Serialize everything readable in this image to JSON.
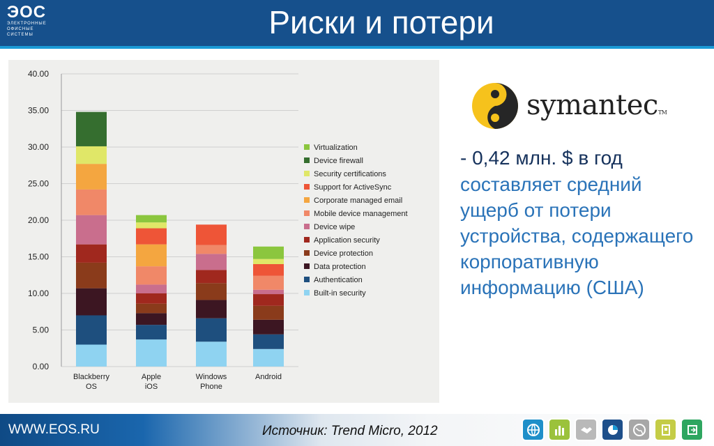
{
  "header": {
    "logo_mark": "ЭОС",
    "logo_sub_1": "ЭЛЕКТРОННЫЕ",
    "logo_sub_2": "ОФИСНЫЕ",
    "logo_sub_3": "СИСТЕМЫ",
    "title": "Риски и потери"
  },
  "symantec": {
    "text": "symantec",
    "tm": "TM"
  },
  "description": {
    "lead": "- 0,42 млн. $ в год",
    "body": "составляет средний ущерб от потери устройства, содержащего корпоративную информацию (США)"
  },
  "footer": {
    "site": "WWW.EOS.RU",
    "source": "Источник: Trend Micro, 2012",
    "icons": [
      "globe-icon",
      "bar-chart-icon",
      "handshake-icon",
      "pie-chart-icon",
      "world-icon",
      "document-icon",
      "arrow-icon"
    ]
  },
  "colors": {
    "header": "#16508c",
    "accent": "#1a9ad6",
    "lead_text": "#16325c",
    "body_text": "#2a73b8"
  },
  "chart_data": {
    "type": "bar",
    "stacked": true,
    "categories": [
      [
        "Blackberry",
        "OS"
      ],
      [
        "Apple",
        "iOS"
      ],
      [
        "Windows",
        "Phone"
      ],
      [
        "Android"
      ]
    ],
    "ylim": [
      0,
      40
    ],
    "yticks": [
      "0.00",
      "5.00",
      "10.00",
      "15.00",
      "20.00",
      "25.00",
      "30.00",
      "35.00",
      "40.00"
    ],
    "grid": true,
    "legend_position": "right",
    "series": [
      {
        "name": "Built-in security",
        "color": "#8fd3f1",
        "values": [
          3.0,
          3.7,
          3.4,
          2.4
        ]
      },
      {
        "name": "Authentication",
        "color": "#1e4f7e",
        "values": [
          4.0,
          2.0,
          3.2,
          2.0
        ]
      },
      {
        "name": "Data protection",
        "color": "#3c1622",
        "values": [
          3.7,
          1.6,
          2.5,
          2.0
        ]
      },
      {
        "name": "Device protection",
        "color": "#8a3b1b",
        "values": [
          3.5,
          1.3,
          2.3,
          1.9
        ]
      },
      {
        "name": "Application security",
        "color": "#a0281e",
        "values": [
          2.5,
          1.4,
          1.8,
          1.6
        ]
      },
      {
        "name": "Device wipe",
        "color": "#c96e8d",
        "values": [
          4.0,
          1.2,
          2.2,
          0.6
        ]
      },
      {
        "name": "Mobile device management",
        "color": "#f08868",
        "values": [
          3.5,
          2.5,
          1.2,
          1.9
        ]
      },
      {
        "name": "Corporate managed email",
        "color": "#f4a640",
        "values": [
          3.5,
          3.0,
          0.0,
          0.0
        ]
      },
      {
        "name": "Support for ActiveSync",
        "color": "#ee5537",
        "values": [
          0.0,
          2.2,
          2.8,
          1.6
        ]
      },
      {
        "name": "Security certifications",
        "color": "#e0e768",
        "values": [
          2.4,
          0.8,
          0.0,
          0.7
        ]
      },
      {
        "name": "Device firewall",
        "color": "#356e2f",
        "values": [
          4.7,
          0.0,
          0.0,
          0.0
        ]
      },
      {
        "name": "Virtualization",
        "color": "#8bc63e",
        "values": [
          0.0,
          1.0,
          0.0,
          1.7
        ]
      }
    ]
  }
}
